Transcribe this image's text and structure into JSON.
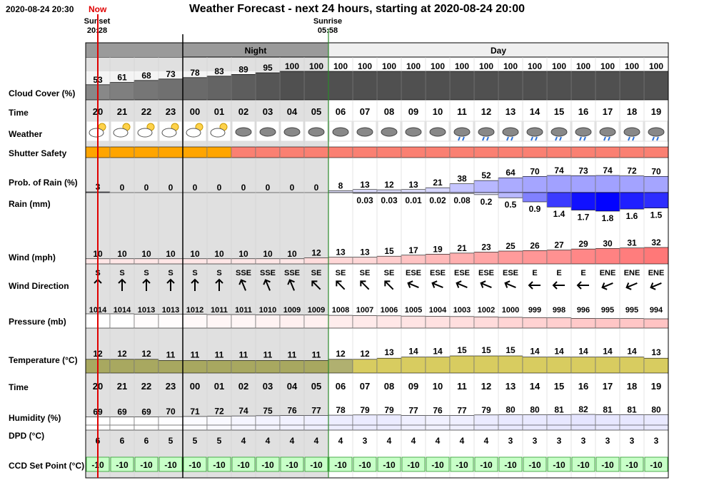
{
  "header": {
    "current_time": "2020-08-24 20:30",
    "now_label": "Now",
    "title": "Weather Forecast - next 24 hours, starting at 2020-08-24 20:00",
    "sunset_label": "Sunset",
    "sunset_time": "20:28",
    "sunrise_label": "Sunrise",
    "sunrise_time": "05:58"
  },
  "period_labels": {
    "night": "Night",
    "day": "Day"
  },
  "row_labels": {
    "cloud_cover": "Cloud Cover (%)",
    "time": "Time",
    "weather": "Weather",
    "shutter_safety": "Shutter Safety",
    "prob_rain": "Prob. of Rain (%)",
    "rain": "Rain (mm)",
    "wind": "Wind (mph)",
    "wind_direction": "Wind Direction",
    "pressure": "Pressure (mb)",
    "temperature": "Temperature (°C)",
    "time2": "Time",
    "humidity": "Humidity (%)",
    "dpd": "DPD (°C)",
    "ccd": "CCD Set Point (°C)"
  },
  "chart_data": {
    "type": "table",
    "hours": [
      "20",
      "21",
      "22",
      "23",
      "00",
      "01",
      "02",
      "03",
      "04",
      "05",
      "06",
      "07",
      "08",
      "09",
      "10",
      "11",
      "12",
      "13",
      "14",
      "15",
      "16",
      "17",
      "18",
      "19"
    ],
    "cloud_cover": [
      53,
      61,
      68,
      73,
      78,
      83,
      89,
      95,
      100,
      100,
      100,
      100,
      100,
      100,
      100,
      100,
      100,
      100,
      100,
      100,
      100,
      100,
      100,
      100
    ],
    "weather": [
      "partly-cloudy-night",
      "partly-cloudy-night",
      "partly-cloudy-night",
      "partly-cloudy-night",
      "partly-cloudy-night",
      "partly-cloudy-night",
      "overcast",
      "overcast",
      "overcast",
      "overcast",
      "overcast",
      "overcast",
      "overcast",
      "overcast",
      "overcast",
      "light-rain",
      "light-rain",
      "light-rain",
      "light-rain",
      "light-rain",
      "light-rain",
      "light-rain",
      "light-rain",
      "light-rain"
    ],
    "shutter_safety": [
      "safe",
      "safe",
      "safe",
      "safe",
      "safe",
      "safe",
      "unsafe",
      "unsafe",
      "unsafe",
      "unsafe",
      "unsafe",
      "unsafe",
      "unsafe",
      "unsafe",
      "unsafe",
      "unsafe",
      "unsafe",
      "unsafe",
      "unsafe",
      "unsafe",
      "unsafe",
      "unsafe",
      "unsafe",
      "unsafe"
    ],
    "prob_rain": [
      3,
      0,
      0,
      0,
      0,
      0,
      0,
      0,
      0,
      0,
      8,
      13,
      12,
      13,
      21,
      38,
      52,
      64,
      70,
      74,
      73,
      74,
      72,
      70
    ],
    "rain_mm": [
      null,
      null,
      null,
      null,
      null,
      null,
      null,
      null,
      null,
      null,
      null,
      0.03,
      0.03,
      0.01,
      0.02,
      0.08,
      0.2,
      0.5,
      0.9,
      1.4,
      1.7,
      1.8,
      1.6,
      1.5
    ],
    "wind_mph": [
      10,
      10,
      10,
      10,
      10,
      10,
      10,
      10,
      10,
      12,
      13,
      13,
      15,
      17,
      19,
      21,
      23,
      25,
      26,
      27,
      29,
      30,
      31,
      32
    ],
    "wind_direction": [
      "S",
      "S",
      "S",
      "S",
      "S",
      "S",
      "SSE",
      "SSE",
      "SSE",
      "SE",
      "SE",
      "SE",
      "SE",
      "ESE",
      "ESE",
      "ESE",
      "ESE",
      "ESE",
      "E",
      "E",
      "E",
      "ENE",
      "ENE",
      "ENE"
    ],
    "pressure_mb": [
      1014,
      1014,
      1013,
      1013,
      1012,
      1011,
      1011,
      1010,
      1009,
      1009,
      1008,
      1007,
      1006,
      1005,
      1004,
      1003,
      1002,
      1000,
      999,
      998,
      996,
      995,
      995,
      994
    ],
    "temperature_c": [
      12,
      12,
      12,
      11,
      11,
      11,
      11,
      11,
      11,
      11,
      12,
      12,
      13,
      14,
      14,
      15,
      15,
      15,
      14,
      14,
      14,
      14,
      14,
      13
    ],
    "humidity": [
      69,
      69,
      69,
      70,
      71,
      72,
      74,
      75,
      76,
      77,
      78,
      79,
      79,
      77,
      76,
      77,
      79,
      80,
      80,
      81,
      82,
      81,
      81,
      80
    ],
    "dpd_c": [
      6,
      6,
      6,
      5,
      5,
      5,
      4,
      4,
      4,
      4,
      4,
      3,
      4,
      4,
      4,
      4,
      4,
      3,
      3,
      3,
      3,
      3,
      3,
      3
    ],
    "ccd_set_point_c": [
      -10,
      -10,
      -10,
      -10,
      -10,
      -10,
      -10,
      -10,
      -10,
      -10,
      -10,
      -10,
      -10,
      -10,
      -10,
      -10,
      -10,
      -10,
      -10,
      -10,
      -10,
      -10,
      -10,
      -10
    ]
  },
  "colors": {
    "night_bg": "#e0e0e0",
    "day_header_bg": "#efefef",
    "night_header_bg": "#9a9a9a",
    "safe": "#ffa500",
    "unsafe": "#fa8072",
    "ccd": "#c8ffc8",
    "now_line": "#e00000"
  }
}
